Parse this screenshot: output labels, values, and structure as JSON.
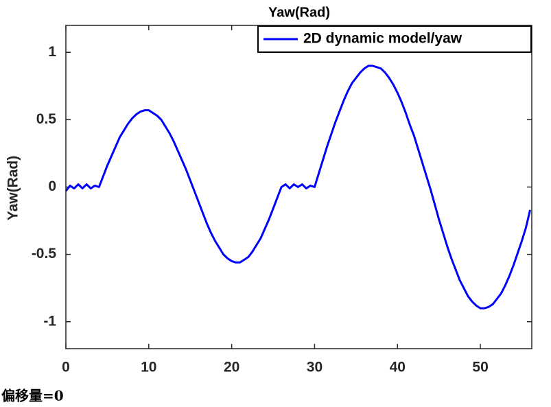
{
  "chart_data": {
    "type": "line",
    "title": "Yaw(Rad)",
    "ylabel": "Yaw(Rad)",
    "annotation": "偏移量=0",
    "legend": "top-right",
    "x": [
      0,
      0.5,
      1,
      1.5,
      2,
      2.5,
      3,
      3.5,
      4,
      4.5,
      5,
      5.5,
      6,
      6.5,
      7,
      7.5,
      8,
      8.5,
      9,
      9.5,
      10,
      10.5,
      11,
      11.5,
      12,
      12.5,
      13,
      13.5,
      14,
      14.5,
      15,
      15.5,
      16,
      16.5,
      17,
      17.5,
      18,
      18.5,
      19,
      19.5,
      20,
      20.5,
      21,
      21.5,
      22,
      22.5,
      23,
      23.5,
      24,
      24.5,
      25,
      25.5,
      26,
      26.5,
      27,
      27.5,
      28,
      28.5,
      29,
      29.5,
      30,
      30.5,
      31,
      31.5,
      32,
      32.5,
      33,
      33.5,
      34,
      34.5,
      35,
      35.5,
      36,
      36.5,
      37,
      37.5,
      38,
      38.5,
      39,
      39.5,
      40,
      40.5,
      41,
      41.5,
      42,
      42.5,
      43,
      43.5,
      44,
      44.5,
      45,
      45.5,
      46,
      46.5,
      47,
      47.5,
      48,
      48.5,
      49,
      49.5,
      50,
      50.5,
      51,
      51.5,
      52,
      52.5,
      53,
      53.5,
      54,
      54.5,
      55,
      55.5,
      56
    ],
    "series": [
      {
        "name": "2D dynamic model/yaw",
        "color": "#0000ff",
        "values": [
          -0.03,
          0.01,
          -0.01,
          0.02,
          -0.01,
          0.02,
          -0.01,
          0.01,
          0,
          0.08,
          0.16,
          0.23,
          0.3,
          0.37,
          0.42,
          0.47,
          0.51,
          0.54,
          0.56,
          0.57,
          0.57,
          0.55,
          0.53,
          0.5,
          0.45,
          0.4,
          0.34,
          0.27,
          0.2,
          0.13,
          0.05,
          -0.03,
          -0.11,
          -0.19,
          -0.27,
          -0.34,
          -0.4,
          -0.45,
          -0.5,
          -0.53,
          -0.55,
          -0.56,
          -0.56,
          -0.54,
          -0.52,
          -0.48,
          -0.43,
          -0.38,
          -0.31,
          -0.24,
          -0.16,
          -0.08,
          0,
          0.02,
          -0.01,
          0.02,
          0,
          0.02,
          -0.01,
          0.01,
          0,
          0.1,
          0.2,
          0.3,
          0.39,
          0.48,
          0.56,
          0.64,
          0.71,
          0.77,
          0.81,
          0.85,
          0.88,
          0.9,
          0.9,
          0.89,
          0.88,
          0.85,
          0.81,
          0.76,
          0.7,
          0.63,
          0.55,
          0.46,
          0.38,
          0.28,
          0.18,
          0.08,
          -0.02,
          -0.13,
          -0.24,
          -0.34,
          -0.44,
          -0.53,
          -0.61,
          -0.69,
          -0.75,
          -0.81,
          -0.85,
          -0.88,
          -0.9,
          -0.9,
          -0.89,
          -0.87,
          -0.83,
          -0.79,
          -0.73,
          -0.66,
          -0.58,
          -0.49,
          -0.4,
          -0.3,
          -0.17
        ]
      }
    ],
    "xlim": [
      0,
      56.2
    ],
    "xticks": [
      0,
      10,
      20,
      30,
      40,
      50
    ],
    "ylim": [
      -1.2,
      1.2
    ],
    "yticks": [
      -1,
      -0.5,
      0,
      0.5,
      1
    ]
  }
}
